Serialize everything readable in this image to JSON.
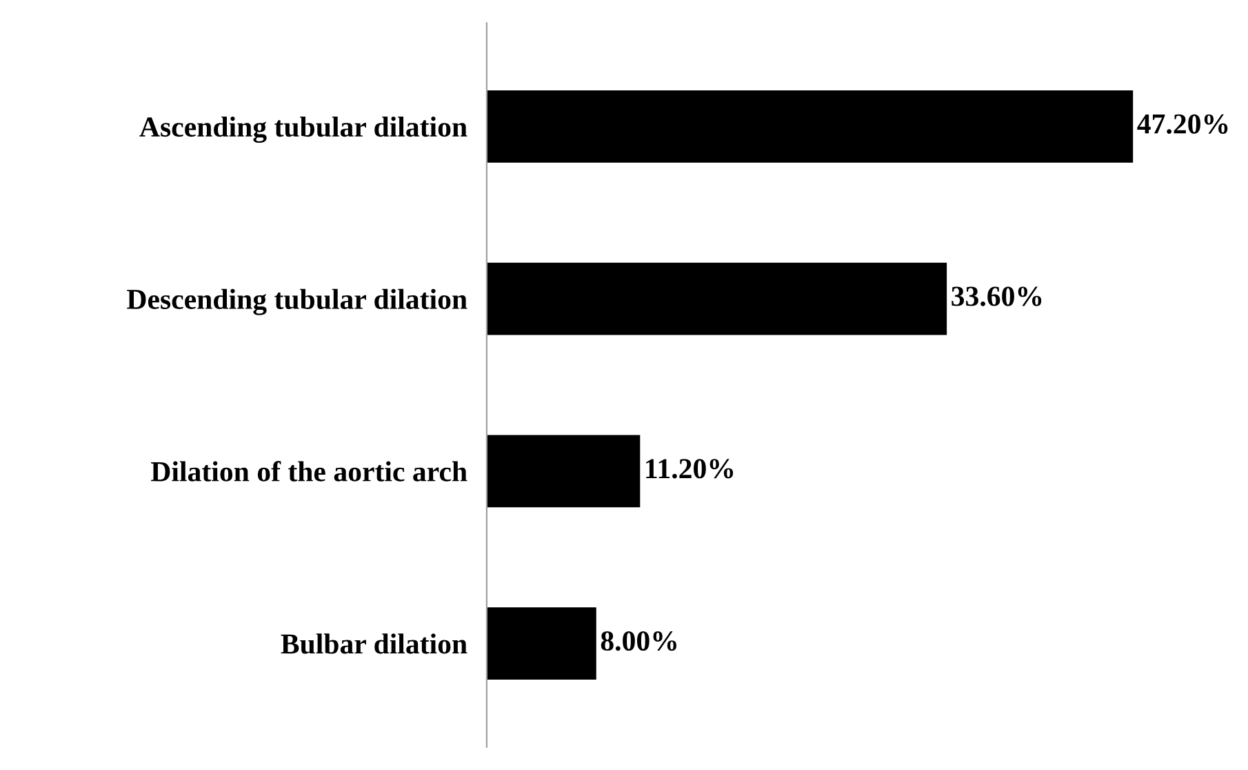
{
  "chart_data": {
    "type": "bar",
    "orientation": "horizontal",
    "categories": [
      "Ascending tubular dilation",
      "Descending tubular dilation",
      "Dilation of the aortic arch",
      "Bulbar dilation"
    ],
    "values": [
      47.2,
      33.6,
      11.2,
      8.0
    ],
    "value_labels": [
      "47.20%",
      "33.60%",
      "11.20%",
      "8.00%"
    ],
    "color": "#000000",
    "grid": false,
    "legend": false
  }
}
